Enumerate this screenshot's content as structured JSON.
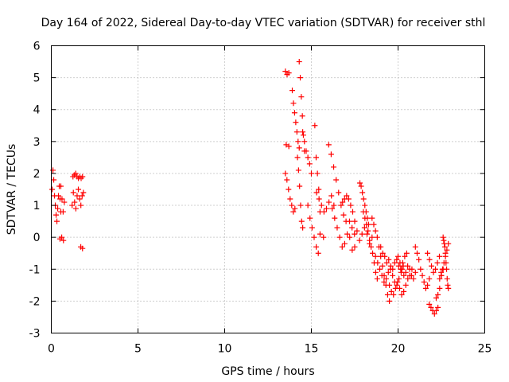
{
  "chart_data": {
    "type": "scatter",
    "title": "Day 164 of 2022, Sidereal Day-to-day VTEC variation (SDTVAR) for receiver sthl",
    "xlabel": "GPS time / hours",
    "ylabel": "SDTVAR / TECUs",
    "xlim": [
      0,
      25
    ],
    "ylim": [
      -3,
      6
    ],
    "xticks": [
      0,
      5,
      10,
      15,
      20,
      25
    ],
    "yticks": [
      -3,
      -2,
      -1,
      0,
      1,
      2,
      3,
      4,
      5,
      6
    ],
    "grid": true,
    "marker": "plus",
    "color": "#ff0000",
    "series": [
      {
        "name": "SDTVAR",
        "segments": [
          {
            "x_start": 0.05,
            "x_end": 0.55,
            "values": [
              1.5,
              2.1,
              1.8,
              1.3,
              1.0,
              0.7,
              0.5,
              0.9,
              1.3,
              1.6,
              1.2,
              0.8
            ]
          },
          {
            "x_start": 0.5,
            "x_end": 0.7,
            "values": [
              -0.05,
              0.0,
              -0.1
            ]
          },
          {
            "x_start": 0.55,
            "x_end": 0.75,
            "values": [
              1.6,
              1.2,
              0.8,
              1.1
            ]
          },
          {
            "x_start": 1.25,
            "x_end": 1.8,
            "values": [
              1.9,
              1.95,
              2.0,
              1.9,
              1.85,
              1.9,
              1.85,
              1.9
            ]
          },
          {
            "x_start": 1.2,
            "x_end": 1.85,
            "values": [
              1.0,
              1.4,
              1.1,
              0.9,
              1.3,
              1.5,
              1.2,
              1.0,
              1.3,
              1.4
            ]
          },
          {
            "x_start": 1.7,
            "x_end": 1.8,
            "values": [
              -0.3,
              -0.35
            ]
          },
          {
            "x_start": 13.5,
            "x_end": 13.7,
            "values": [
              5.2,
              5.1,
              5.15
            ]
          },
          {
            "x_start": 13.55,
            "x_end": 13.7,
            "values": [
              2.9,
              2.85
            ]
          },
          {
            "x_start": 13.5,
            "x_end": 14.05,
            "values": [
              2.0,
              1.8,
              1.5,
              1.2,
              1.0,
              0.8,
              0.9
            ]
          },
          {
            "x_start": 13.9,
            "x_end": 14.3,
            "values": [
              4.6,
              4.2,
              3.9,
              3.6,
              3.3,
              3.0,
              2.8
            ]
          },
          {
            "x_start": 14.3,
            "x_end": 14.6,
            "values": [
              5.5,
              5.0,
              4.4,
              3.8,
              3.2,
              2.7
            ]
          },
          {
            "x_start": 14.2,
            "x_end": 14.5,
            "values": [
              2.5,
              2.1,
              1.6,
              1.0,
              0.5,
              0.3
            ]
          },
          {
            "x_start": 14.5,
            "x_end": 15.0,
            "values": [
              3.3,
              3.0,
              2.7,
              2.5,
              2.3,
              2.0
            ]
          },
          {
            "x_start": 14.8,
            "x_end": 15.4,
            "values": [
              1.0,
              0.6,
              0.3,
              0.0,
              -0.3,
              -0.5
            ]
          },
          {
            "x_start": 15.2,
            "x_end": 15.5,
            "values": [
              3.5,
              2.5,
              2.0,
              1.5,
              0.8
            ]
          },
          {
            "x_start": 15.5,
            "x_end": 15.7,
            "values": [
              0.1,
              0.0
            ]
          },
          {
            "x_start": 15.3,
            "x_end": 16.3,
            "values": [
              1.4,
              1.2,
              1.0,
              0.8,
              0.9,
              1.1,
              1.3,
              1.0
            ]
          },
          {
            "x_start": 16.0,
            "x_end": 17.0,
            "values": [
              2.9,
              2.6,
              2.2,
              1.8,
              1.4,
              1.0,
              0.7,
              0.5
            ]
          },
          {
            "x_start": 16.2,
            "x_end": 17.5,
            "values": [
              0.9,
              0.6,
              0.3,
              0.0,
              -0.3,
              -0.2,
              0.1,
              0.0,
              -0.4,
              -0.3
            ]
          },
          {
            "x_start": 16.8,
            "x_end": 17.5,
            "values": [
              1.1,
              1.2,
              1.3,
              1.2,
              1.0,
              0.8,
              0.5
            ]
          },
          {
            "x_start": 17.2,
            "x_end": 18.5,
            "values": [
              0.5,
              0.3,
              0.1,
              0.2,
              -0.1,
              0.1,
              0.3,
              0.1,
              -0.2,
              0.0
            ]
          },
          {
            "x_start": 17.8,
            "x_end": 18.3,
            "values": [
              1.7,
              1.6,
              1.4,
              1.2,
              1.0,
              0.8,
              0.6,
              0.4
            ]
          },
          {
            "x_start": 18.0,
            "x_end": 18.8,
            "values": [
              0.8,
              0.6,
              0.4,
              0.2,
              -0.1,
              -0.3,
              -0.5,
              -0.8,
              -1.1,
              -1.3
            ]
          },
          {
            "x_start": 18.5,
            "x_end": 19.5,
            "values": [
              0.6,
              0.4,
              0.2,
              0.0,
              -0.3,
              -0.6,
              -0.9,
              -1.2,
              -1.5,
              -1.8,
              -2.0
            ]
          },
          {
            "x_start": 18.7,
            "x_end": 20.3,
            "values": [
              -0.6,
              -0.8,
              -1.0,
              -1.2,
              -1.4,
              -1.3,
              -1.1,
              -1.0,
              -1.2,
              -1.4,
              -1.5,
              -1.3,
              -1.1,
              -0.9
            ]
          },
          {
            "x_start": 19.0,
            "x_end": 20.5,
            "values": [
              -0.3,
              -0.5,
              -0.6,
              -0.8,
              -0.7,
              -0.9,
              -1.0,
              -0.8,
              -0.7,
              -0.9,
              -1.0,
              -0.8,
              -0.6,
              -0.5
            ]
          },
          {
            "x_start": 19.5,
            "x_end": 20.8,
            "values": [
              -1.5,
              -1.7,
              -1.8,
              -1.6,
              -1.4,
              -1.6,
              -1.8,
              -1.7,
              -1.5,
              -1.3,
              -1.2,
              -1.0
            ]
          },
          {
            "x_start": 20.0,
            "x_end": 21.0,
            "values": [
              -0.6,
              -0.8,
              -1.0,
              -1.2,
              -1.1,
              -0.9,
              -1.0,
              -1.2,
              -1.3,
              -1.1
            ]
          },
          {
            "x_start": 21.0,
            "x_end": 21.8,
            "values": [
              -0.3,
              -0.5,
              -0.7,
              -1.0,
              -1.2,
              -1.4,
              -1.6,
              -1.5,
              -1.3
            ]
          },
          {
            "x_start": 21.8,
            "x_end": 22.3,
            "values": [
              -2.1,
              -2.2,
              -2.3,
              -2.4,
              -2.3,
              -2.2
            ]
          },
          {
            "x_start": 22.2,
            "x_end": 22.6,
            "values": [
              -1.9,
              -1.8,
              -1.6,
              -1.2,
              -1.0
            ]
          },
          {
            "x_start": 21.7,
            "x_end": 22.5,
            "values": [
              -0.5,
              -0.7,
              -0.9,
              -1.1,
              -1.0,
              -0.8,
              -0.6,
              -1.2
            ]
          },
          {
            "x_start": 22.4,
            "x_end": 22.9,
            "values": [
              -1.3,
              -1.1,
              -1.0,
              -0.8,
              -0.6,
              -0.4,
              -0.2
            ]
          },
          {
            "x_start": 22.6,
            "x_end": 22.9,
            "values": [
              0.0,
              -0.1,
              -0.2,
              -0.3,
              -0.5,
              -0.8,
              -1.0,
              -1.3,
              -1.5,
              -1.6
            ]
          }
        ]
      }
    ]
  }
}
